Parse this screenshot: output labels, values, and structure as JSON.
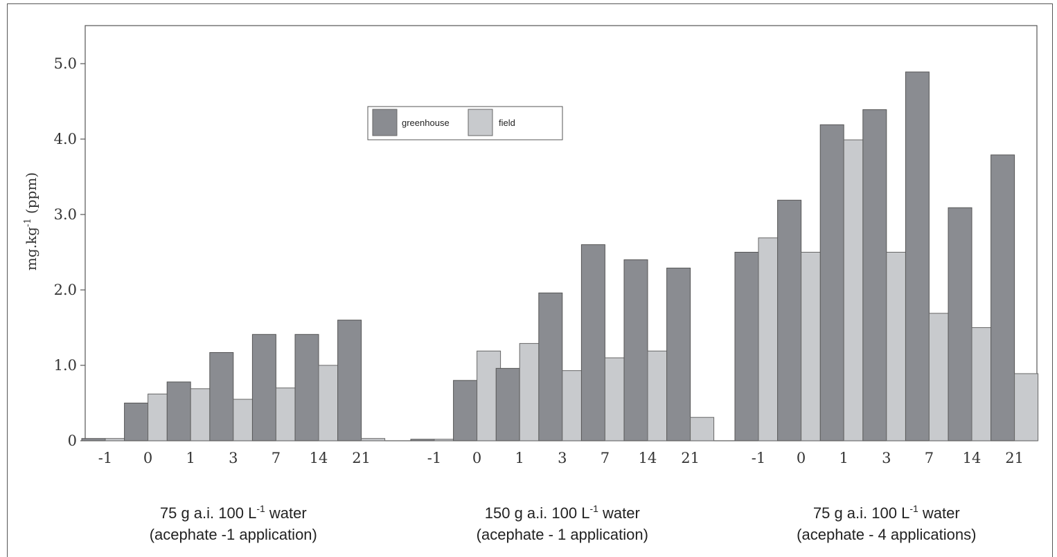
{
  "chart_data": {
    "type": "bar",
    "ylabel": "mg.kg",
    "ylabel_sup": "-1",
    "ylabel_unit": "(ppm)",
    "ylim": [
      0,
      5.5
    ],
    "yticks": [
      {
        "value": 0,
        "label": "0"
      },
      {
        "value": 1,
        "label": "1.0"
      },
      {
        "value": 2,
        "label": "2.0"
      },
      {
        "value": 3,
        "label": "3.0"
      },
      {
        "value": 4,
        "label": "4.0"
      },
      {
        "value": 5,
        "label": "5.0"
      }
    ],
    "legend": {
      "position": "top-center",
      "entries": [
        "greenhouse",
        "field"
      ]
    },
    "series_colors": [
      "#8a8c91",
      "#c8cacd"
    ],
    "groups": [
      {
        "label_line1": "75 g a.i. 100 L",
        "label_sup": "-1",
        "label_line1_end": " water",
        "label_line2": "(acephate -1 application)",
        "categories": [
          "-1",
          "0",
          "1",
          "3",
          "7",
          "14",
          "21"
        ],
        "greenhouse": [
          0.03,
          0.5,
          0.78,
          1.17,
          1.41,
          1.41,
          1.6
        ],
        "field": [
          0.03,
          0.62,
          0.69,
          0.55,
          0.7,
          1.0,
          0.03
        ]
      },
      {
        "label_line1": "150 g a.i. 100 L",
        "label_sup": "-1",
        "label_line1_end": " water",
        "label_line2": "(acephate - 1 application)",
        "categories": [
          "-1",
          "0",
          "1",
          "3",
          "7",
          "14",
          "21"
        ],
        "greenhouse": [
          0.02,
          0.8,
          0.96,
          1.96,
          2.6,
          2.4,
          2.29
        ],
        "field": [
          0.02,
          1.19,
          1.29,
          0.93,
          1.1,
          1.19,
          0.31
        ]
      },
      {
        "label_line1": "75 g a.i. 100 L",
        "label_sup": "-1",
        "label_line1_end": " water",
        "label_line2": "(acephate - 4 applications)",
        "categories": [
          "-1",
          "0",
          "1",
          "3",
          "7",
          "14",
          "21"
        ],
        "greenhouse": [
          2.5,
          3.19,
          4.19,
          4.39,
          4.89,
          3.09,
          3.79
        ],
        "field": [
          2.69,
          2.5,
          3.99,
          2.5,
          1.69,
          1.5,
          0.89
        ]
      }
    ]
  }
}
